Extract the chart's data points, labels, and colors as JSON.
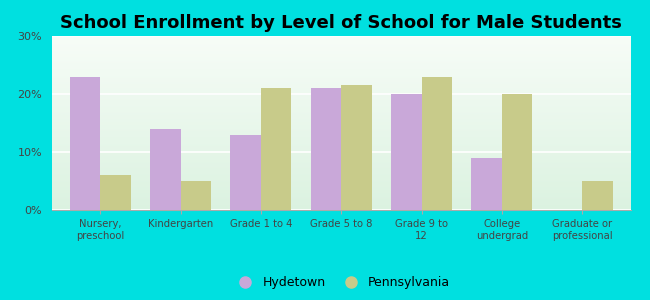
{
  "title": "School Enrollment by Level of School for Male Students",
  "categories": [
    "Nursery,\npreschool",
    "Kindergarten",
    "Grade 1 to 4",
    "Grade 5 to 8",
    "Grade 9 to\n12",
    "College\nundergrad",
    "Graduate or\nprofessional"
  ],
  "hydetown": [
    23,
    14,
    13,
    21,
    20,
    9,
    0
  ],
  "pennsylvania": [
    6,
    5,
    21,
    21.5,
    23,
    20,
    5
  ],
  "hydetown_color": "#c9a8d9",
  "pennsylvania_color": "#c8cb8a",
  "background_color": "#00e0e0",
  "ylim": [
    0,
    30
  ],
  "yticks": [
    0,
    10,
    20,
    30
  ],
  "ytick_labels": [
    "0%",
    "10%",
    "20%",
    "30%"
  ],
  "title_fontsize": 13,
  "legend_labels": [
    "Hydetown",
    "Pennsylvania"
  ],
  "bar_width": 0.38
}
